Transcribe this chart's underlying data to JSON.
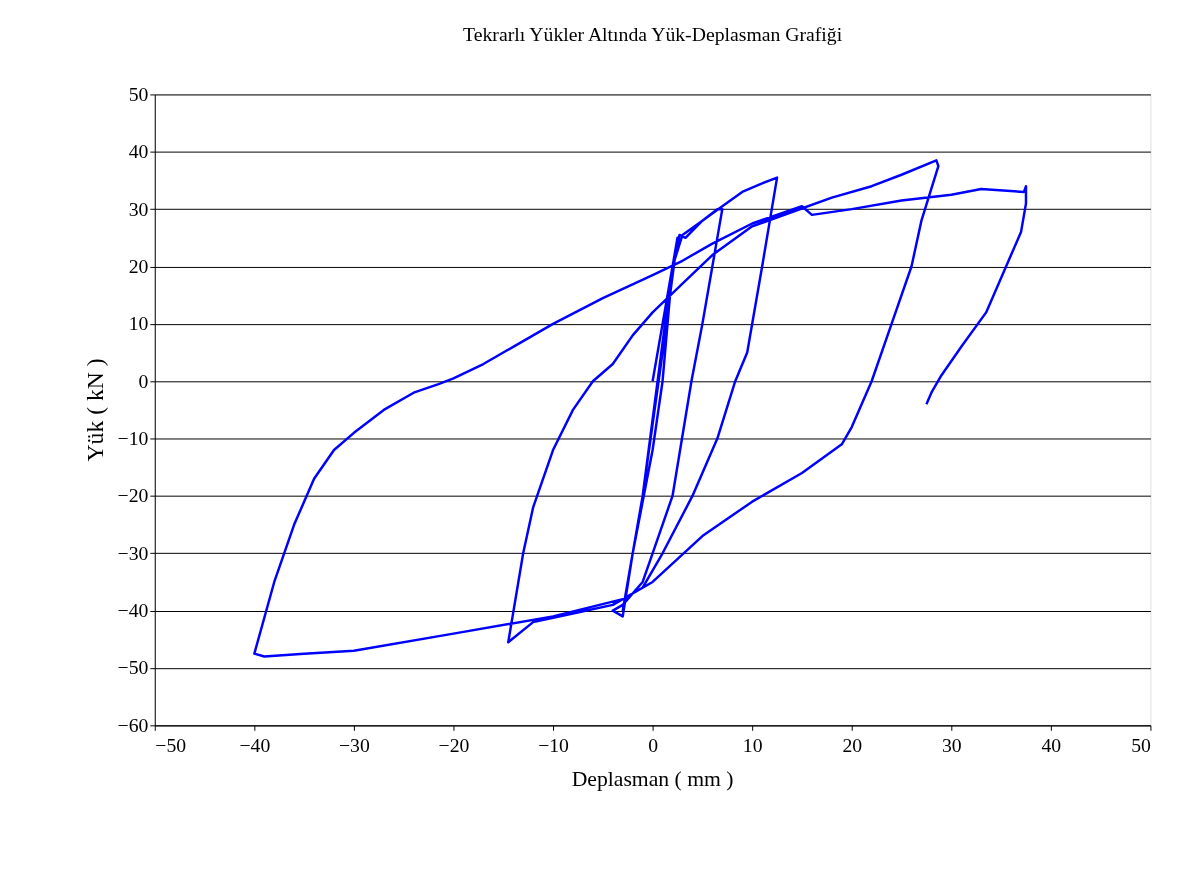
{
  "chart_data": {
    "type": "line",
    "title": "Tekrarlı Yükler Altında Yük-Deplasman Grafiği",
    "xlabel": "Deplasman ( mm )",
    "ylabel": "Yük ( kN )",
    "xlim": [
      -50,
      50
    ],
    "xticks": [
      -50,
      -40,
      -30,
      -20,
      -10,
      0,
      10,
      20,
      30,
      40,
      50
    ],
    "ylim": [
      -60,
      50
    ],
    "yticks": [
      -60,
      -50,
      -40,
      -30,
      -20,
      -10,
      0,
      10,
      20,
      30,
      40,
      50
    ],
    "grid": "y",
    "legend": false,
    "marker": "none",
    "line_style": "solid",
    "series": [
      {
        "color": "#0000ff",
        "x": [
          0,
          1,
          2,
          2.5,
          1,
          -1,
          -2.5,
          -3,
          -1,
          0.5,
          2,
          2.7,
          3.3,
          5,
          6.5,
          7,
          6,
          5,
          3.9,
          2,
          0,
          -1,
          -3,
          -4,
          -3,
          -2,
          0,
          1,
          2,
          3,
          5,
          7,
          9,
          11,
          12.5,
          11,
          9.5,
          8.3,
          6.5,
          4,
          1,
          -1,
          -4,
          -8,
          -12,
          -14.5,
          -13,
          -12,
          -10,
          -8,
          -6,
          -4,
          -2,
          0,
          3,
          6,
          10,
          14,
          18,
          22,
          25,
          28.5,
          28.7,
          27,
          26,
          24,
          22,
          20,
          19,
          15,
          10,
          5,
          0,
          -3,
          -10,
          -20,
          -30,
          -35,
          -39,
          -40,
          -38,
          -36,
          -34,
          -32,
          -30,
          -27,
          -24,
          -21.5,
          -20,
          -17,
          -14,
          -10,
          -5,
          0,
          3,
          6,
          10,
          15,
          16,
          20,
          25,
          30,
          33,
          37.3,
          37.5,
          37.5,
          37,
          36,
          33.5,
          31,
          29,
          28,
          27.5
        ],
        "values": [
          0,
          10,
          20,
          25,
          5,
          -20,
          -35,
          -40,
          -20,
          0,
          20,
          25.5,
          25,
          28,
          30,
          30,
          20,
          10,
          0,
          -20,
          -30,
          -35,
          -39,
          -40,
          -41,
          -30,
          -12,
          0,
          20,
          25.5,
          28,
          30.5,
          33,
          34.5,
          35.5,
          20,
          5,
          0,
          -10,
          -20,
          -30,
          -36,
          -39,
          -40.5,
          -42,
          -45.5,
          -30,
          -22,
          -12,
          -5,
          0,
          3,
          8,
          12,
          17,
          22,
          27,
          29.5,
          32,
          34,
          36,
          38.5,
          37.5,
          28,
          20,
          10,
          0,
          -8,
          -11,
          -16,
          -21,
          -27,
          -35,
          -38,
          -41,
          -44,
          -47,
          -47.5,
          -48,
          -47.5,
          -35,
          -25,
          -17,
          -12,
          -9,
          -5,
          -2,
          -0.5,
          0.5,
          3,
          6,
          10,
          14.5,
          18.5,
          21,
          24,
          27.5,
          30.5,
          29,
          30,
          31.5,
          32.5,
          33.5,
          33,
          34,
          31,
          26,
          22,
          12,
          6,
          1,
          -2,
          -4
        ]
      }
    ]
  }
}
